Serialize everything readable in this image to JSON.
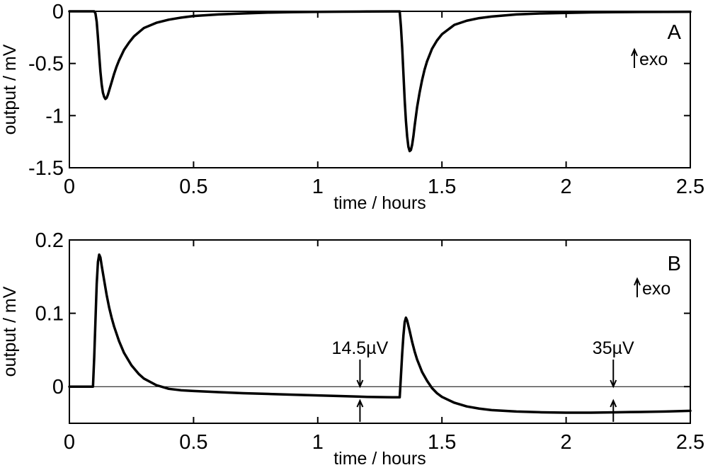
{
  "chart_data": [
    {
      "type": "line",
      "panel_label": "A",
      "exo_label": "exo",
      "xlabel": "time / hours",
      "ylabel": "output / mV",
      "xlim": [
        0,
        2.5
      ],
      "ylim": [
        -1.5,
        0
      ],
      "xticks": [
        0,
        0.5,
        1,
        1.5,
        2,
        2.5
      ],
      "xtick_labels": [
        "0",
        "0.5",
        "1",
        "1.5",
        "2",
        "2.5"
      ],
      "yticks": [
        -1.5,
        -1,
        -0.5,
        0
      ],
      "ytick_labels": [
        "-1.5",
        "-1",
        "-0.5",
        "0"
      ],
      "reference_line": 0,
      "series": [
        {
          "x": [
            0,
            0.1,
            0.105,
            0.11,
            0.115,
            0.12,
            0.125,
            0.13,
            0.135,
            0.14,
            0.145,
            0.15,
            0.155,
            0.16,
            0.17,
            0.18,
            0.19,
            0.2,
            0.22,
            0.24,
            0.26,
            0.28,
            0.3,
            0.35,
            0.4,
            0.45,
            0.5,
            0.6,
            0.7,
            0.8,
            0.9,
            1.0,
            1.1,
            1.2,
            1.3,
            1.33,
            1.335,
            1.34,
            1.345,
            1.35,
            1.355,
            1.36,
            1.365,
            1.37,
            1.375,
            1.38,
            1.385,
            1.39,
            1.4,
            1.41,
            1.42,
            1.43,
            1.44,
            1.46,
            1.48,
            1.5,
            1.55,
            1.6,
            1.65,
            1.7,
            1.8,
            1.9,
            2.0,
            2.1,
            2.2,
            2.3,
            2.4,
            2.5
          ],
          "y": [
            0,
            0,
            -0.02,
            -0.1,
            -0.25,
            -0.42,
            -0.58,
            -0.7,
            -0.78,
            -0.82,
            -0.84,
            -0.83,
            -0.8,
            -0.76,
            -0.68,
            -0.6,
            -0.53,
            -0.47,
            -0.37,
            -0.3,
            -0.24,
            -0.2,
            -0.16,
            -0.11,
            -0.08,
            -0.06,
            -0.045,
            -0.03,
            -0.02,
            -0.012,
            -0.008,
            -0.005,
            -0.003,
            -0.002,
            -0.001,
            -0.001,
            -0.15,
            -0.35,
            -0.6,
            -0.85,
            -1.05,
            -1.2,
            -1.3,
            -1.34,
            -1.33,
            -1.28,
            -1.2,
            -1.1,
            -0.92,
            -0.78,
            -0.66,
            -0.56,
            -0.48,
            -0.36,
            -0.28,
            -0.22,
            -0.13,
            -0.09,
            -0.065,
            -0.05,
            -0.03,
            -0.02,
            -0.015,
            -0.01,
            -0.008,
            -0.006,
            -0.005,
            -0.004
          ]
        }
      ],
      "annotations": []
    },
    {
      "type": "line",
      "panel_label": "B",
      "exo_label": "exo",
      "xlabel": "time / hours",
      "ylabel": "output / mV",
      "xlim": [
        0,
        2.5
      ],
      "ylim": [
        -0.05,
        0.2
      ],
      "xticks": [
        0,
        0.5,
        1,
        1.5,
        2,
        2.5
      ],
      "xtick_labels": [
        "0",
        "0.5",
        "1",
        "1.5",
        "2",
        "2.5"
      ],
      "yticks": [
        0,
        0.1,
        0.2
      ],
      "ytick_labels": [
        "0",
        "0.1",
        "0.2"
      ],
      "reference_line": 0,
      "series": [
        {
          "x": [
            0,
            0.095,
            0.1,
            0.105,
            0.11,
            0.115,
            0.12,
            0.125,
            0.13,
            0.14,
            0.15,
            0.16,
            0.17,
            0.18,
            0.2,
            0.22,
            0.25,
            0.28,
            0.3,
            0.35,
            0.4,
            0.45,
            0.5,
            0.6,
            0.7,
            0.8,
            0.9,
            1.0,
            1.1,
            1.2,
            1.3,
            1.33,
            1.335,
            1.34,
            1.345,
            1.35,
            1.355,
            1.36,
            1.37,
            1.38,
            1.39,
            1.4,
            1.42,
            1.44,
            1.46,
            1.48,
            1.5,
            1.55,
            1.6,
            1.65,
            1.7,
            1.8,
            1.9,
            2.0,
            2.1,
            2.2,
            2.3,
            2.4,
            2.5
          ],
          "y": [
            0,
            0,
            0.04,
            0.09,
            0.14,
            0.17,
            0.18,
            0.176,
            0.165,
            0.145,
            0.125,
            0.108,
            0.094,
            0.082,
            0.062,
            0.046,
            0.029,
            0.017,
            0.011,
            0.002,
            -0.003,
            -0.005,
            -0.006,
            -0.0075,
            -0.009,
            -0.01,
            -0.011,
            -0.012,
            -0.013,
            -0.014,
            -0.0145,
            -0.0145,
            0.015,
            0.045,
            0.07,
            0.088,
            0.094,
            0.09,
            0.076,
            0.061,
            0.048,
            0.037,
            0.02,
            0.008,
            -0.002,
            -0.009,
            -0.014,
            -0.022,
            -0.027,
            -0.03,
            -0.032,
            -0.034,
            -0.035,
            -0.0355,
            -0.0355,
            -0.035,
            -0.0345,
            -0.034,
            -0.033
          ]
        }
      ],
      "annotations": [
        {
          "text": "14.5µV",
          "x": 1.17
        },
        {
          "text": "35µV",
          "x": 2.19
        }
      ]
    }
  ]
}
